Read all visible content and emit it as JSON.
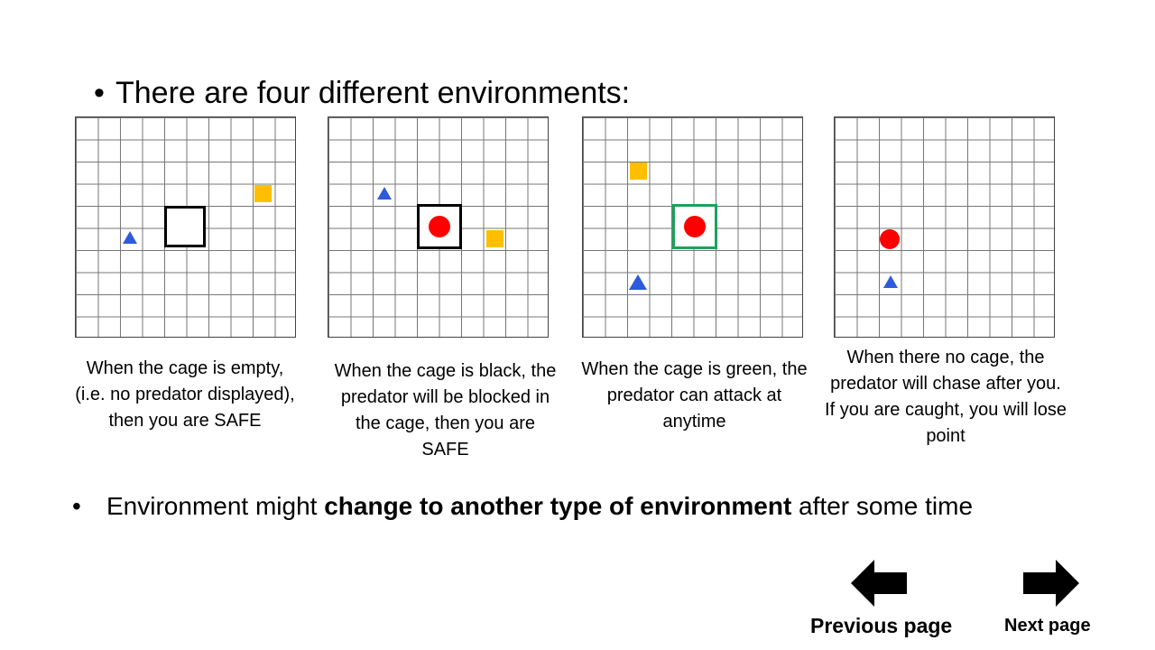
{
  "heading": {
    "bullet": "•",
    "text": "There are four different environments:"
  },
  "environments": [
    {
      "caption": "When the cage is empty, (i.e. no predator displayed), then you are SAFE",
      "cage": "empty"
    },
    {
      "caption": "When the cage is black, the predator will be blocked in the cage, then you are SAFE",
      "cage": "black"
    },
    {
      "caption": "When the cage is green, the predator can attack at anytime",
      "cage": "green"
    },
    {
      "caption": "When there no cage, the predator will chase after you. If you are caught, you will lose point",
      "cage": "none"
    }
  ],
  "note": {
    "bullet": "•",
    "prefix": "Environment might ",
    "bold": "change to another type of environment",
    "suffix": " after some time"
  },
  "nav": {
    "previous_label": "Previous page",
    "next_label": "Next page",
    "previous_icon": "arrow-left-icon",
    "next_icon": "arrow-right-icon"
  },
  "colors": {
    "predator": "#ff0000",
    "food": "#ffbf00",
    "agent": "#2e5bdb",
    "green_cage": "#1aa35a"
  }
}
